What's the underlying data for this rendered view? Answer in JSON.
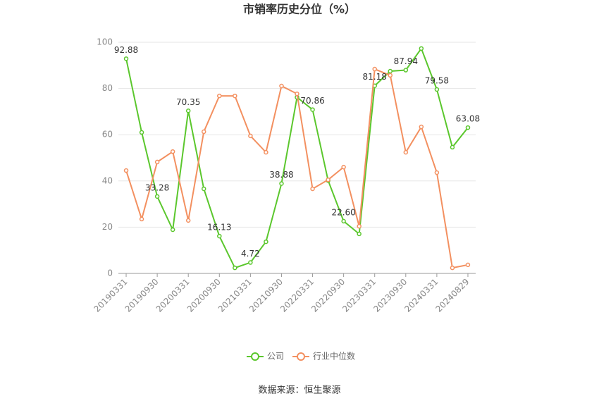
{
  "chart_data": {
    "type": "line",
    "title": "市销率历史分位（%）",
    "categories": [
      "20190331",
      null,
      "20190930",
      null,
      "20200331",
      null,
      "20200930",
      null,
      "20210331",
      null,
      "20210930",
      null,
      "20220331",
      null,
      "20220930",
      null,
      "20230331",
      null,
      "20230930",
      null,
      "20240331",
      null,
      "20240829"
    ],
    "series": [
      {
        "name": "公司",
        "color": "#5bc72d",
        "values": [
          92.88,
          61.0,
          33.28,
          18.9,
          70.35,
          36.6,
          16.13,
          2.4,
          4.72,
          13.7,
          38.88,
          76.2,
          70.86,
          40.2,
          22.6,
          17.1,
          81.18,
          87.5,
          87.94,
          97.3,
          79.58,
          54.6,
          63.08
        ],
        "value_labels": [
          "92.88",
          null,
          "33.28",
          null,
          "70.35",
          null,
          "16.13",
          null,
          "4.72",
          null,
          "38.88",
          null,
          "70.86",
          null,
          "22.60",
          null,
          "81.18",
          null,
          "87.94",
          null,
          "79.58",
          null,
          "63.08"
        ]
      },
      {
        "name": "行业中位数",
        "color": "#f39060",
        "values": [
          44.5,
          23.5,
          48.2,
          52.7,
          22.9,
          61.3,
          76.8,
          76.8,
          59.5,
          52.4,
          81.1,
          77.7,
          36.6,
          40.5,
          46.0,
          20.4,
          88.4,
          85.7,
          52.4,
          63.4,
          43.6,
          2.4,
          3.7
        ]
      }
    ],
    "ylim": [
      0,
      100
    ],
    "yticks": [
      0,
      20,
      40,
      60,
      80,
      100
    ],
    "grid": true,
    "source": "数据来源：恒生聚源"
  }
}
